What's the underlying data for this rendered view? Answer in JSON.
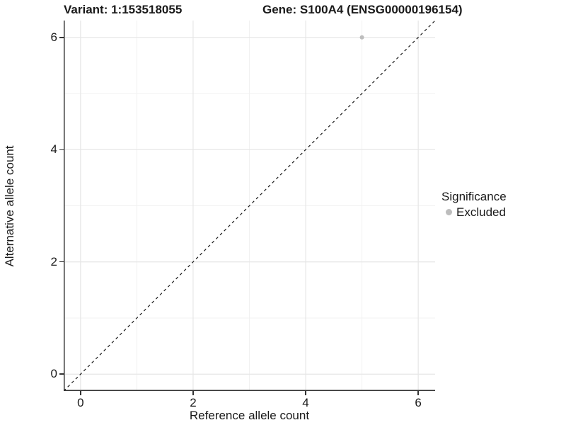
{
  "titles": {
    "variant": "Variant: 1:153518055",
    "gene": "Gene: S100A4 (ENSG00000196154)"
  },
  "axes": {
    "x_label": "Reference allele count",
    "y_label": "Alternative allele count"
  },
  "legend": {
    "title": "Significance",
    "items": [
      {
        "label": "Excluded",
        "color": "#bdbdbd"
      }
    ]
  },
  "chart_data": {
    "type": "scatter",
    "title_left": "Variant: 1:153518055",
    "title_right": "Gene: S100A4 (ENSG00000196154)",
    "xlabel": "Reference allele count",
    "ylabel": "Alternative allele count",
    "xlim": [
      -0.3,
      6.3
    ],
    "ylim": [
      -0.3,
      6.3
    ],
    "x_ticks": [
      0,
      2,
      4,
      6
    ],
    "y_ticks": [
      0,
      2,
      4,
      6
    ],
    "x_minor_ticks": [
      1,
      3,
      5
    ],
    "y_minor_ticks": [
      1,
      3,
      5
    ],
    "grid": true,
    "legend_title": "Significance",
    "legend_position": "right",
    "series": [
      {
        "name": "Excluded",
        "color": "#bdbdbd",
        "marker": "circle",
        "points": [
          {
            "x": 5,
            "y": 6
          }
        ]
      }
    ],
    "reference_line": {
      "type": "identity",
      "from": [
        -0.3,
        -0.3
      ],
      "to": [
        6.3,
        6.3
      ],
      "style": "dashed",
      "color": "#1a1a1a"
    }
  },
  "colors": {
    "background": "#ffffff",
    "grid_major": "#e6e6e6",
    "grid_minor": "#f1f1f1",
    "axis": "#333333",
    "point": "#bdbdbd"
  }
}
